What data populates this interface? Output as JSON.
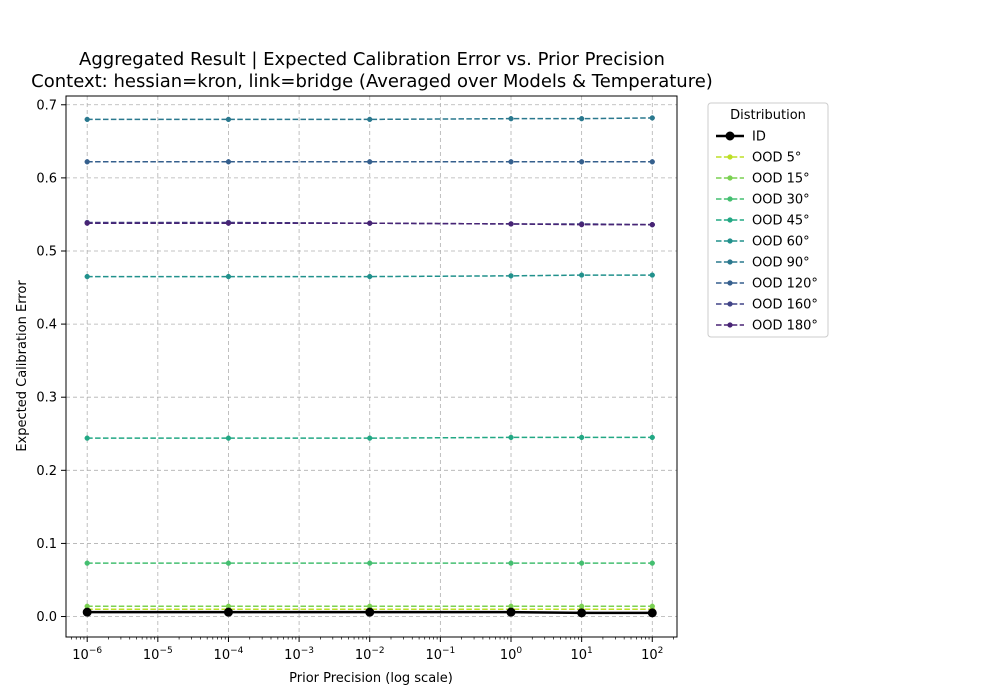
{
  "chart_data": {
    "type": "line",
    "title_line1": "Aggregated Result | Expected Calibration Error vs. Prior Precision",
    "title_line2": "Context: hessian=kron, link=bridge (Averaged over Models & Temperature)",
    "xlabel": "Prior Precision (log scale)",
    "ylabel": "Expected Calibration Error",
    "x_scale": "log",
    "x": [
      1e-06,
      0.0001,
      0.01,
      1,
      10,
      100
    ],
    "xlim_log10": [
      -6.3,
      2.35
    ],
    "ylim": [
      -0.028,
      0.712
    ],
    "x_tick_exponents": [
      "−6",
      "−5",
      "−4",
      "−3",
      "−2",
      "−1",
      "0",
      "1",
      "2"
    ],
    "x_tick_base": "10",
    "y_ticks": [
      "0.0",
      "0.1",
      "0.2",
      "0.3",
      "0.4",
      "0.5",
      "0.6",
      "0.7"
    ],
    "grid": true,
    "legend_title": "Distribution",
    "legend_placement": "outside-right",
    "series": [
      {
        "name": "ID",
        "color": "#000000",
        "style": "solid",
        "values": [
          0.006,
          0.006,
          0.006,
          0.006,
          0.005,
          0.005
        ]
      },
      {
        "name": "OOD 5°",
        "color": "#bddf26",
        "style": "dashed",
        "values": [
          0.01,
          0.01,
          0.01,
          0.01,
          0.01,
          0.01
        ]
      },
      {
        "name": "OOD 15°",
        "color": "#7ad151",
        "style": "dashed",
        "values": [
          0.014,
          0.014,
          0.014,
          0.014,
          0.014,
          0.014
        ]
      },
      {
        "name": "OOD 30°",
        "color": "#44bf70",
        "style": "dashed",
        "values": [
          0.073,
          0.073,
          0.073,
          0.073,
          0.073,
          0.073
        ]
      },
      {
        "name": "OOD 45°",
        "color": "#22a884",
        "style": "dashed",
        "values": [
          0.244,
          0.244,
          0.244,
          0.245,
          0.245,
          0.245
        ]
      },
      {
        "name": "OOD 60°",
        "color": "#21918c",
        "style": "dashed",
        "values": [
          0.465,
          0.465,
          0.465,
          0.466,
          0.467,
          0.467
        ]
      },
      {
        "name": "OOD 90°",
        "color": "#2a788e",
        "style": "dashed",
        "values": [
          0.68,
          0.68,
          0.68,
          0.681,
          0.681,
          0.682
        ]
      },
      {
        "name": "OOD 120°",
        "color": "#355f8d",
        "style": "dashed",
        "values": [
          0.622,
          0.622,
          0.622,
          0.622,
          0.622,
          0.622
        ]
      },
      {
        "name": "OOD 160°",
        "color": "#414487",
        "style": "dashed",
        "values": [
          0.539,
          0.539,
          0.538,
          0.537,
          0.537,
          0.536
        ]
      },
      {
        "name": "OOD 180°",
        "color": "#482475",
        "style": "dashed",
        "values": [
          0.538,
          0.538,
          0.538,
          0.537,
          0.536,
          0.536
        ]
      }
    ]
  }
}
